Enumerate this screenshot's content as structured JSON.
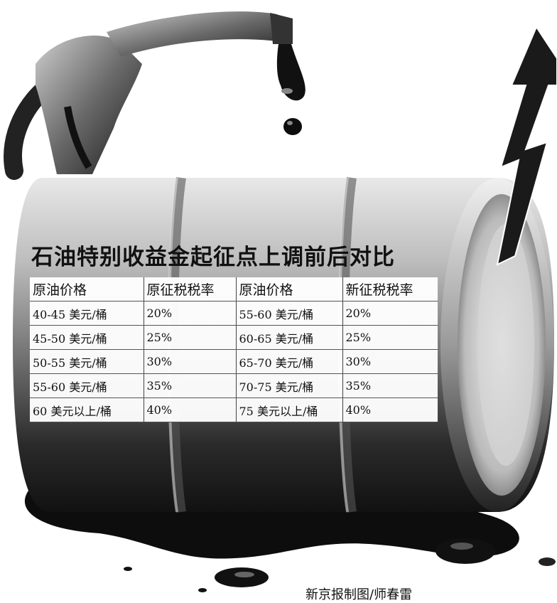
{
  "title": "石油特别收益金起征点上调前后对比",
  "table": {
    "headers": [
      "原油价格",
      "原征税税率",
      "原油价格",
      "新征税税率"
    ],
    "rows": [
      [
        "40-45 美元/桶",
        "20%",
        "55-60 美元/桶",
        "20%"
      ],
      [
        "45-50 美元/桶",
        "25%",
        "60-65 美元/桶",
        "25%"
      ],
      [
        "50-55 美元/桶",
        "30%",
        "65-70 美元/桶",
        "30%"
      ],
      [
        "55-60 美元/桶",
        "35%",
        "70-75 美元/桶",
        "35%"
      ],
      [
        "60 美元以上/桶",
        "40%",
        "75 美元以上/桶",
        "40%"
      ]
    ]
  },
  "credit": "新京报制图/师春雷",
  "illustration": {
    "icons": [
      "fuel-nozzle-icon",
      "oil-drop-icon",
      "oil-barrel-icon",
      "rising-arrow-icon",
      "oil-puddle-icon"
    ]
  }
}
